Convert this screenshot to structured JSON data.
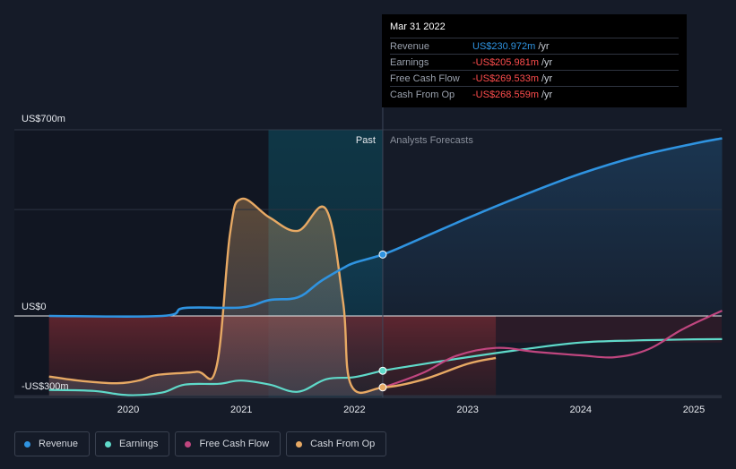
{
  "chart_data": {
    "type": "line",
    "y_axis": {
      "ylim": [
        -300,
        700
      ],
      "tick_labels": [
        "US$700m",
        "US$0",
        "-US$300m"
      ],
      "tick_values": [
        700,
        0,
        -300
      ]
    },
    "x_axis": {
      "xlim": [
        2019.25,
        2025.25
      ],
      "tick_labels": [
        "2020",
        "2021",
        "2022",
        "2023",
        "2024",
        "2025"
      ],
      "tick_values": [
        2020,
        2021,
        2022,
        2023,
        2024,
        2025
      ]
    },
    "divider": {
      "x": 2022.25,
      "past_label": "Past",
      "forecast_label": "Analysts Forecasts"
    },
    "highlight_range": [
      2021.24,
      2022.25
    ],
    "series": [
      {
        "name": "Revenue",
        "color": "#2f93e0",
        "points": [
          [
            2019.3,
            0
          ],
          [
            2020.3,
            0
          ],
          [
            2020.5,
            30
          ],
          [
            2021.0,
            32
          ],
          [
            2021.25,
            60
          ],
          [
            2021.5,
            70
          ],
          [
            2021.7,
            130
          ],
          [
            2021.9,
            180
          ],
          [
            2022.0,
            200
          ],
          [
            2022.25,
            231
          ],
          [
            2022.5,
            275
          ],
          [
            2023.0,
            368
          ],
          [
            2023.5,
            455
          ],
          [
            2024.0,
            535
          ],
          [
            2024.5,
            600
          ],
          [
            2025.0,
            648
          ],
          [
            2025.25,
            668
          ]
        ]
      },
      {
        "name": "Earnings",
        "color": "#5fd9c9",
        "points": [
          [
            2019.3,
            -278
          ],
          [
            2019.7,
            -282
          ],
          [
            2020.0,
            -298
          ],
          [
            2020.3,
            -288
          ],
          [
            2020.5,
            -258
          ],
          [
            2020.8,
            -255
          ],
          [
            2021.0,
            -243
          ],
          [
            2021.25,
            -258
          ],
          [
            2021.5,
            -285
          ],
          [
            2021.75,
            -238
          ],
          [
            2022.0,
            -230
          ],
          [
            2022.25,
            -206
          ],
          [
            2022.5,
            -188
          ],
          [
            2023.0,
            -155
          ],
          [
            2023.5,
            -125
          ],
          [
            2024.0,
            -100
          ],
          [
            2024.5,
            -92
          ],
          [
            2025.0,
            -88
          ],
          [
            2025.25,
            -87
          ]
        ]
      },
      {
        "name": "Free Cash Flow",
        "color": "#c0467f",
        "points": [
          [
            2022.25,
            -270
          ],
          [
            2022.6,
            -215
          ],
          [
            2022.9,
            -150
          ],
          [
            2023.25,
            -120
          ],
          [
            2023.6,
            -135
          ],
          [
            2024.0,
            -148
          ],
          [
            2024.3,
            -155
          ],
          [
            2024.6,
            -125
          ],
          [
            2024.9,
            -50
          ],
          [
            2025.25,
            20
          ]
        ]
      },
      {
        "name": "Cash From Op",
        "color": "#e7a964",
        "points": [
          [
            2019.3,
            -228
          ],
          [
            2019.6,
            -245
          ],
          [
            2019.9,
            -253
          ],
          [
            2020.1,
            -242
          ],
          [
            2020.25,
            -222
          ],
          [
            2020.6,
            -210
          ],
          [
            2020.78,
            -192
          ],
          [
            2020.9,
            310
          ],
          [
            2021.0,
            440
          ],
          [
            2021.25,
            370
          ],
          [
            2021.5,
            320
          ],
          [
            2021.75,
            400
          ],
          [
            2021.9,
            50
          ],
          [
            2021.97,
            -260
          ],
          [
            2022.25,
            -269
          ],
          [
            2022.6,
            -240
          ],
          [
            2023.0,
            -180
          ],
          [
            2023.25,
            -158
          ]
        ]
      }
    ]
  },
  "tooltip": {
    "date": "Mar 31 2022",
    "rows": [
      {
        "label": "Revenue",
        "value": "US$230.972m",
        "unit": "/yr",
        "color": "#2f93e0"
      },
      {
        "label": "Earnings",
        "value": "-US$205.981m",
        "unit": "/yr",
        "color": "#ff4d4d"
      },
      {
        "label": "Free Cash Flow",
        "value": "-US$269.533m",
        "unit": "/yr",
        "color": "#ff4d4d"
      },
      {
        "label": "Cash From Op",
        "value": "-US$268.559m",
        "unit": "/yr",
        "color": "#ff4d4d"
      }
    ]
  },
  "legend": [
    {
      "label": "Revenue",
      "color": "#2f93e0"
    },
    {
      "label": "Earnings",
      "color": "#5fd9c9"
    },
    {
      "label": "Free Cash Flow",
      "color": "#c0467f"
    },
    {
      "label": "Cash From Op",
      "color": "#e7a964"
    }
  ]
}
